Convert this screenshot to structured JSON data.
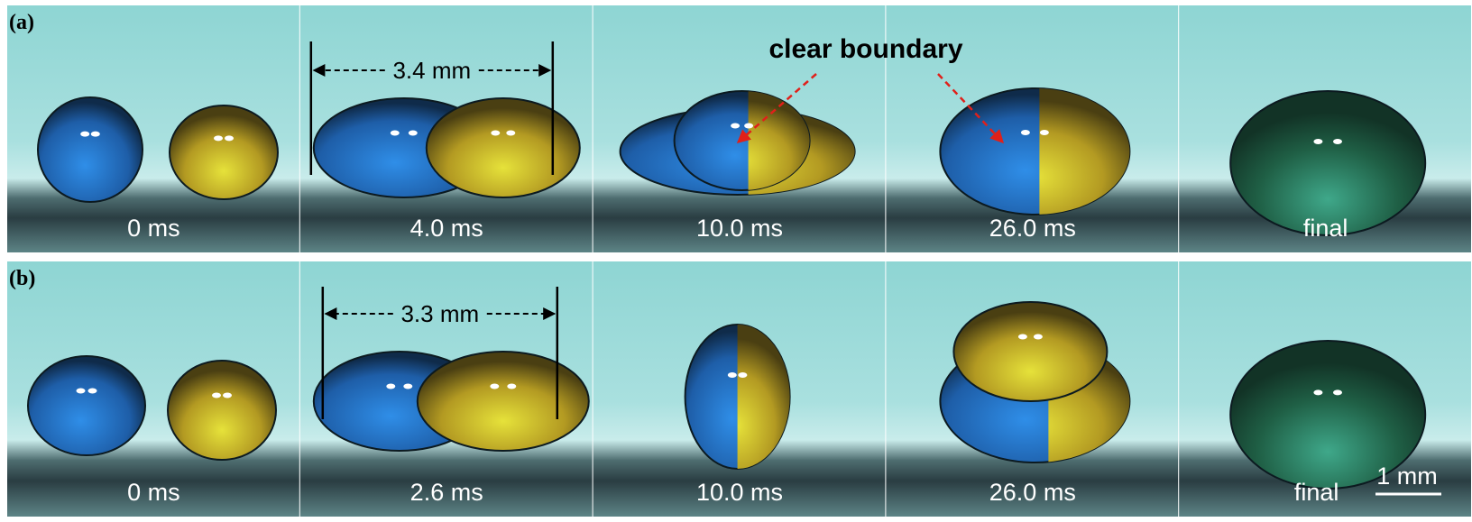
{
  "rows": [
    {
      "label": "(a)",
      "panels": [
        "0 ms",
        "4.0 ms",
        "10.0 ms",
        "26.0 ms",
        "final"
      ],
      "dimension": "3.4 mm",
      "annotation": "clear boundary"
    },
    {
      "label": "(b)",
      "panels": [
        "0 ms",
        "2.6 ms",
        "10.0 ms",
        "26.0 ms",
        "final"
      ],
      "dimension": "3.3 mm"
    }
  ],
  "scale_bar": "1 mm"
}
